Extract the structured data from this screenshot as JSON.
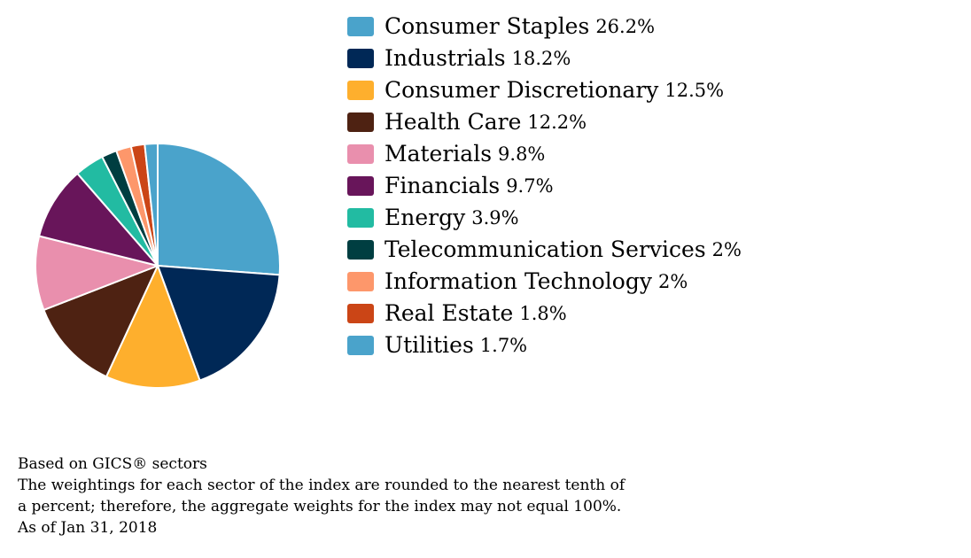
{
  "chart_data": {
    "type": "pie",
    "title": "",
    "start_angle_deg": 0,
    "direction": "clockwise",
    "slices": [
      {
        "label": "Consumer Staples",
        "pct_label": "26.2%",
        "value": 26.2,
        "color": "#4aa3cb"
      },
      {
        "label": "Industrials",
        "pct_label": "18.2%",
        "value": 18.2,
        "color": "#002856"
      },
      {
        "label": "Consumer Discretionary",
        "pct_label": "12.5%",
        "value": 12.5,
        "color": "#feaf2d"
      },
      {
        "label": "Health Care",
        "pct_label": "12.2%",
        "value": 12.2,
        "color": "#4e2212"
      },
      {
        "label": "Materials",
        "pct_label": "9.8%",
        "value": 9.8,
        "color": "#e98fad"
      },
      {
        "label": "Financials",
        "pct_label": "9.7%",
        "value": 9.7,
        "color": "#68155a"
      },
      {
        "label": "Energy",
        "pct_label": "3.9%",
        "value": 3.9,
        "color": "#22bba2"
      },
      {
        "label": "Telecommunication Services",
        "pct_label": "2%",
        "value": 2.0,
        "color": "#003e41"
      },
      {
        "label": "Information Technology",
        "pct_label": "2%",
        "value": 2.0,
        "color": "#fd976b"
      },
      {
        "label": "Real Estate",
        "pct_label": "1.8%",
        "value": 1.8,
        "color": "#cb4516"
      },
      {
        "label": "Utilities",
        "pct_label": "1.7%",
        "value": 1.7,
        "color": "#4aa3cb"
      }
    ],
    "legend_position": "right"
  },
  "footnotes": {
    "basis": "Based on GICS® sectors",
    "rounding_line1": "The weightings for each sector of the index are rounded to the nearest tenth of",
    "rounding_line2": "a percent; therefore, the aggregate weights for the index may not equal 100%.",
    "as_of": "As of Jan 31, 2018"
  }
}
